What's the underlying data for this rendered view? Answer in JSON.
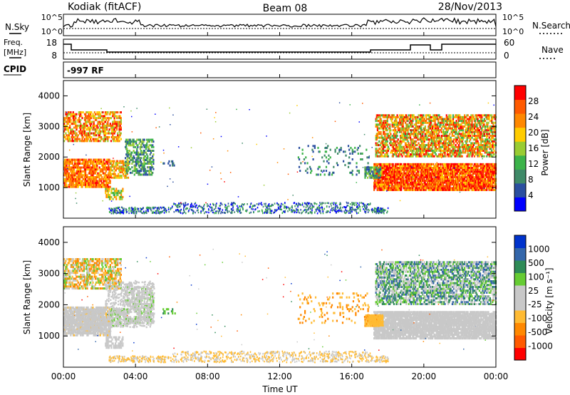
{
  "header": {
    "station": "Kodiak (fitACF)",
    "beam": "Beam 08",
    "date": "28/Nov/2013"
  },
  "top_panels": {
    "nsky_label": "N.Sky",
    "nsearch_label": "N.Search",
    "noise_tick_top": "10^5",
    "noise_tick_bottom": "10^0",
    "freq_label_line1": "Freq.",
    "freq_label_line2": "[MHz]",
    "freq_ticks": [
      "18",
      "8"
    ],
    "nave_label": "Nave",
    "nave_ticks": [
      "60",
      "0"
    ],
    "cpid_label": "CPID",
    "cpid_value": "-997 RF"
  },
  "colors": {
    "power_scale": [
      "#0000ff",
      "#2b4fa0",
      "#3f8a68",
      "#3cb34a",
      "#99cc33",
      "#ffcc00",
      "#ff8800",
      "#ff5a00",
      "#ff0000"
    ],
    "velocity_scale": [
      "#ff0000",
      "#ff5a00",
      "#ff8800",
      "#ffbb33",
      "#c8c8c8",
      "#c8c8c8",
      "#66cc33",
      "#2e8b57",
      "#3366aa",
      "#0033cc"
    ],
    "panel_background": "#ffffff"
  },
  "chart_data": [
    {
      "type": "heatmap",
      "title": "",
      "quantity": "Power",
      "xlabel": "",
      "ylabel": "Slant Range [km]",
      "xlim": [
        "00:00",
        "24:00"
      ],
      "ylim": [
        0,
        4500
      ],
      "yticks": [
        1000,
        2000,
        3000,
        4000
      ],
      "colorbar_label": "Power [dB]",
      "colorbar_ticks": [
        4,
        8,
        12,
        16,
        20,
        24,
        28
      ],
      "colorbar_range": [
        0,
        32
      ]
    },
    {
      "type": "heatmap",
      "title": "",
      "quantity": "Velocity",
      "xlabel": "Time UT",
      "ylabel": "Slant Range [km]",
      "xlim": [
        "00:00",
        "24:00"
      ],
      "ylim": [
        0,
        4500
      ],
      "yticks": [
        1000,
        2000,
        3000,
        4000
      ],
      "xticks": [
        "00:00",
        "04:00",
        "08:00",
        "12:00",
        "16:00",
        "20:00",
        "00:00"
      ],
      "colorbar_label": "Velocity [m s⁻¹]",
      "colorbar_ticks": [
        "1000",
        "500",
        "100",
        "25",
        "-25",
        "-100",
        "-500",
        "-1000"
      ]
    }
  ]
}
